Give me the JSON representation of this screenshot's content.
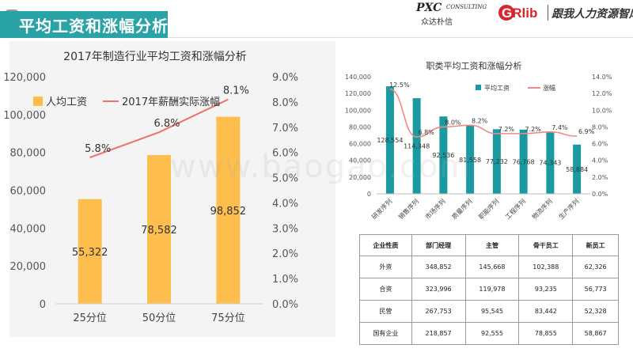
{
  "header": {
    "title": "平均工资和涨幅分析"
  },
  "logos": {
    "pxc_main": "PXC",
    "pxc_sub": "CONSULTING",
    "pxc_cn": "众达朴信",
    "grlib_prefix": "G",
    "grlib_suffix": "Rlib",
    "grlib_cn": "跟我人力资源智库"
  },
  "watermark": "www.baogao.com",
  "chart_data": [
    {
      "type": "bar",
      "title": "2017年制造行业平均工资和涨幅分析",
      "categories": [
        "25分位",
        "50分位",
        "75分位"
      ],
      "series": [
        {
          "name": "人均工资",
          "kind": "bar",
          "axis": "left",
          "color": "#fdbe4d",
          "values": [
            55322,
            78582,
            98852
          ],
          "labels": [
            "55,322",
            "78,582",
            "98,852"
          ]
        },
        {
          "name": "2017年薪酬实际涨幅",
          "kind": "line",
          "axis": "right",
          "color": "#ef6f6c",
          "values": [
            5.8,
            6.8,
            8.1
          ],
          "labels": [
            "5.8%",
            "6.8%",
            "8.1%"
          ]
        }
      ],
      "ylim_left": [
        0,
        120000
      ],
      "ylim_right": [
        0,
        9
      ],
      "yticks_left": [
        "0",
        "20,000",
        "40,000",
        "60,000",
        "80,000",
        "100,000",
        "120,000"
      ],
      "yticks_right": [
        "0.0%",
        "1.0%",
        "2.0%",
        "3.0%",
        "4.0%",
        "5.0%",
        "6.0%",
        "7.0%",
        "8.0%",
        "9.0%"
      ],
      "legend_position": "top-left",
      "grid": false
    },
    {
      "type": "bar",
      "title": "职类平均工资和涨幅分析",
      "categories": [
        "研发序列",
        "销售序列",
        "市场序列",
        "质量序列",
        "职能序列",
        "工程序列",
        "物流序列",
        "生产序列"
      ],
      "series": [
        {
          "name": "平均工资",
          "kind": "bar",
          "axis": "left",
          "color": "#1a9aa0",
          "values": [
            128554,
            114348,
            92536,
            81558,
            77232,
            76768,
            74343,
            58884
          ],
          "labels": [
            "128,554",
            "114,348",
            "92,536",
            "81,558",
            "77,232",
            "76,768",
            "74,343",
            "58,884"
          ]
        },
        {
          "name": "涨幅",
          "kind": "line",
          "axis": "right",
          "color": "#ef8a87",
          "values": [
            12.5,
            6.8,
            8.0,
            8.2,
            7.2,
            7.2,
            7.4,
            6.9
          ],
          "labels": [
            "12.5%",
            "6.8%",
            "8.0%",
            "8.2%",
            "7.2%",
            "7.2%",
            "7.4%",
            "6.9%"
          ]
        }
      ],
      "ylim_left": [
        0,
        140000
      ],
      "ylim_right": [
        0,
        14
      ],
      "yticks_left": [
        "0",
        "20,000",
        "40,000",
        "60,000",
        "80,000",
        "100,000",
        "120,000",
        "140,000"
      ],
      "yticks_right": [
        "0.0%",
        "2.0%",
        "4.0%",
        "6.0%",
        "8.0%",
        "10.0%",
        "12.0%",
        "14.0%"
      ],
      "legend_position": "top-right",
      "grid": false
    }
  ],
  "table": {
    "headers": [
      "企业性质",
      "部门经理",
      "主管",
      "骨干员工",
      "新员工"
    ],
    "rows": [
      [
        "外资",
        "348,852",
        "145,668",
        "102,388",
        "62,326"
      ],
      [
        "合资",
        "323,996",
        "119,978",
        "93,235",
        "56,773"
      ],
      [
        "民营",
        "267,753",
        "95,545",
        "83,442",
        "52,328"
      ],
      [
        "国有企业",
        "218,857",
        "92,555",
        "78,855",
        "58,867"
      ]
    ]
  }
}
